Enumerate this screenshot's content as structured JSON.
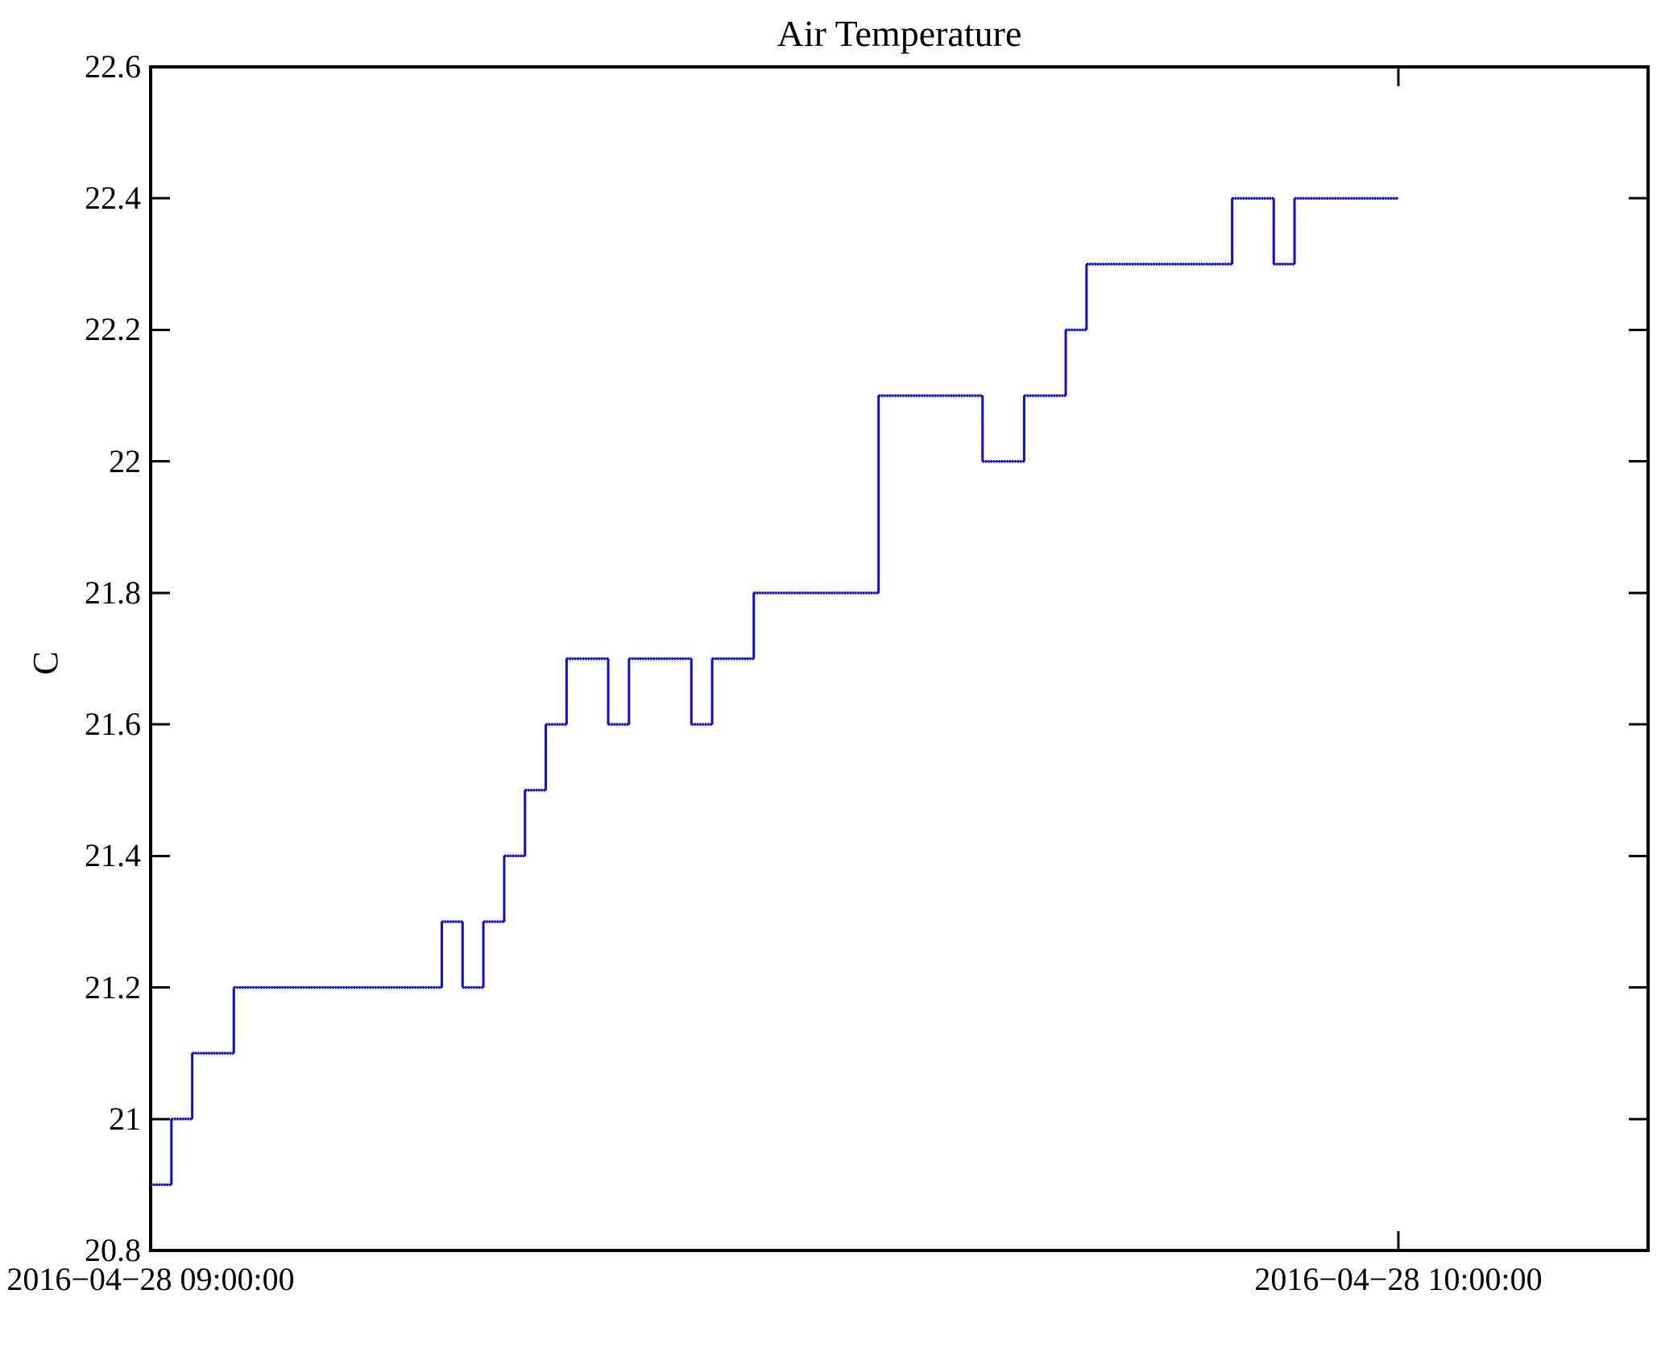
{
  "figure": {
    "background": "#ffffff",
    "axis_color": "#000000",
    "line_color": "#0d0de0"
  },
  "chart_data": {
    "type": "line",
    "subtype": "step",
    "title": "Air Temperature",
    "xlabel": "",
    "ylabel": "C",
    "grid": false,
    "legend": null,
    "x_axis": {
      "tick_labels": [
        "2016−04−28 09:00:00",
        "2016−04−28 10:00:00"
      ],
      "tick_minutes": [
        0,
        60
      ],
      "range_minutes": [
        0,
        72
      ]
    },
    "y_axis": {
      "ticks": [
        20.8,
        21,
        21.2,
        21.4,
        21.6,
        21.8,
        22,
        22.2,
        22.4,
        22.6
      ],
      "tick_labels": [
        "20.8",
        "21",
        "21.2",
        "21.4",
        "21.6",
        "21.8",
        "22",
        "22.2",
        "22.4",
        "22.6"
      ],
      "range": [
        20.8,
        22.6
      ]
    },
    "series": [
      {
        "name": "Air Temperature (C)",
        "color": "#0d0de0",
        "step_points": [
          {
            "time": "09:00:00",
            "minutes": 0,
            "value": 20.9
          },
          {
            "time": "09:01:00",
            "minutes": 1,
            "value": 21.0
          },
          {
            "time": "09:02:00",
            "minutes": 2,
            "value": 21.1
          },
          {
            "time": "09:04:00",
            "minutes": 4,
            "value": 21.2
          },
          {
            "time": "09:14:00",
            "minutes": 14,
            "value": 21.3
          },
          {
            "time": "09:15:00",
            "minutes": 15,
            "value": 21.2
          },
          {
            "time": "09:16:00",
            "minutes": 16,
            "value": 21.3
          },
          {
            "time": "09:17:00",
            "minutes": 17,
            "value": 21.4
          },
          {
            "time": "09:18:00",
            "minutes": 18,
            "value": 21.5
          },
          {
            "time": "09:19:00",
            "minutes": 19,
            "value": 21.6
          },
          {
            "time": "09:20:00",
            "minutes": 20,
            "value": 21.7
          },
          {
            "time": "09:22:00",
            "minutes": 22,
            "value": 21.6
          },
          {
            "time": "09:23:00",
            "minutes": 23,
            "value": 21.7
          },
          {
            "time": "09:26:00",
            "minutes": 26,
            "value": 21.6
          },
          {
            "time": "09:27:00",
            "minutes": 27,
            "value": 21.7
          },
          {
            "time": "09:29:00",
            "minutes": 29,
            "value": 21.8
          },
          {
            "time": "09:35:00",
            "minutes": 35,
            "value": 22.1
          },
          {
            "time": "09:40:00",
            "minutes": 40,
            "value": 22.0
          },
          {
            "time": "09:42:00",
            "minutes": 42,
            "value": 22.1
          },
          {
            "time": "09:44:00",
            "minutes": 44,
            "value": 22.2
          },
          {
            "time": "09:45:00",
            "minutes": 45,
            "value": 22.3
          },
          {
            "time": "09:52:00",
            "minutes": 52,
            "value": 22.4
          },
          {
            "time": "09:54:00",
            "minutes": 54,
            "value": 22.3
          },
          {
            "time": "09:55:00",
            "minutes": 55,
            "value": 22.4
          }
        ],
        "end": {
          "time": "10:00:00",
          "minutes": 60,
          "value": 22.4
        }
      }
    ]
  }
}
